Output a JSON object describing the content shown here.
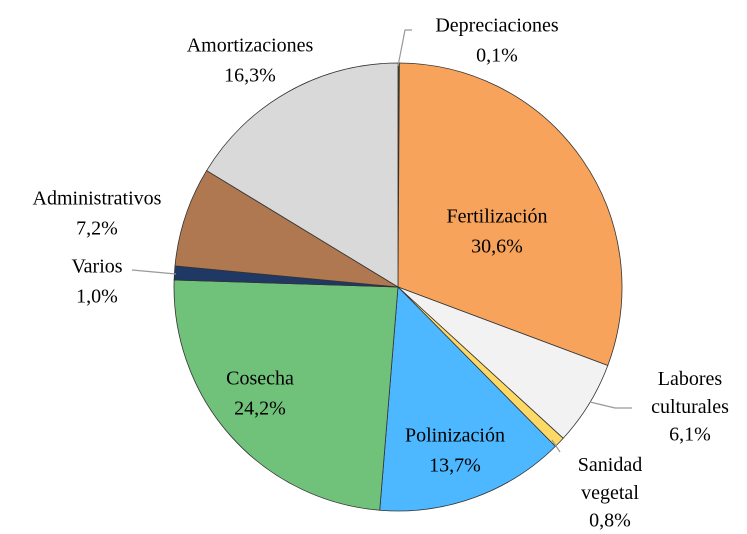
{
  "chart_data": {
    "type": "pie",
    "categories": [
      "Depreciaciones",
      "Fertilización",
      "Labores culturales",
      "Sanidad vegetal",
      "Polinización",
      "Cosecha",
      "Varios",
      "Administrativos",
      "Amortizaciones"
    ],
    "values": [
      0.1,
      30.6,
      6.1,
      0.8,
      13.7,
      24.2,
      1.0,
      7.2,
      16.3
    ],
    "value_labels": [
      "0,1%",
      "30,6%",
      "6,1%",
      "0,8%",
      "13,7%",
      "24,2%",
      "1,0%",
      "7,2%",
      "16,3%"
    ],
    "colors": [
      "#375623",
      "#f7a35c",
      "#f2f2f2",
      "#ffd966",
      "#4db8ff",
      "#70c17a",
      "#1f3864",
      "#b07850",
      "#d9d9d9"
    ]
  }
}
